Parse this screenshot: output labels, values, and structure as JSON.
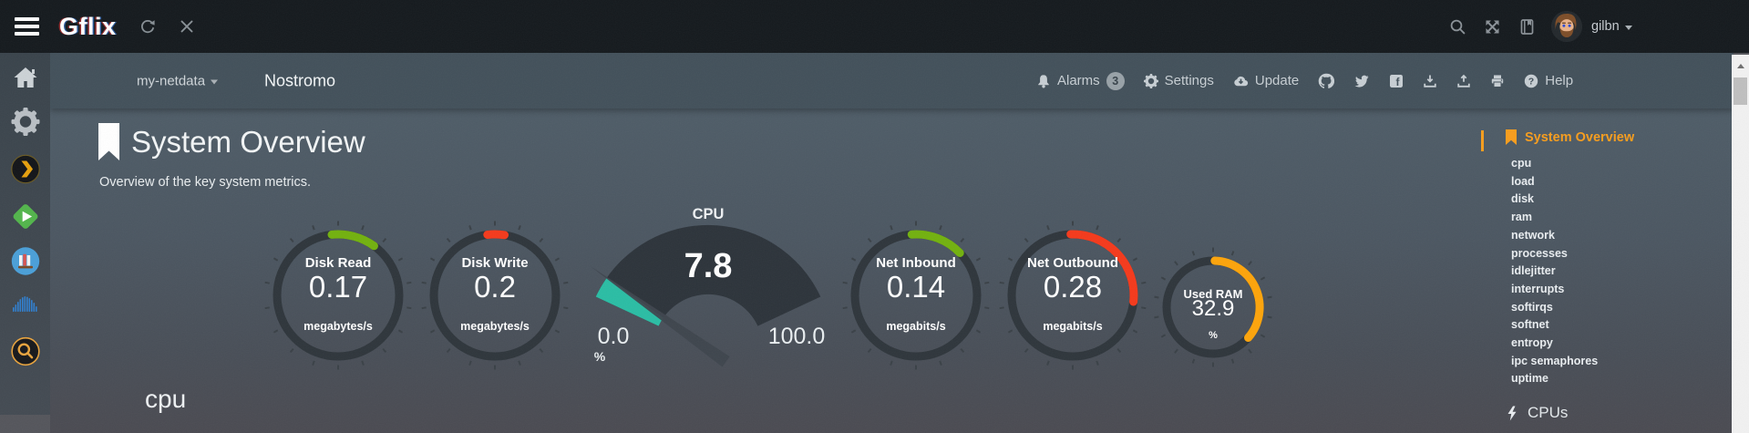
{
  "topbar": {
    "logo": "Gflix",
    "username": "gilbn"
  },
  "navbar": {
    "server": "my-netdata",
    "host": "Nostromo",
    "alarms_label": "Alarms",
    "alarms_count": "3",
    "settings_label": "Settings",
    "update_label": "Update",
    "help_label": "Help"
  },
  "page": {
    "title": "System Overview",
    "subtitle": "Overview of the key system metrics.",
    "section_heading": "cpu"
  },
  "gauges": [
    {
      "id": "disk-read",
      "label": "Disk Read",
      "value": "0.17",
      "unit": "megabytes/s",
      "color": "#72b10e",
      "arc_start": -6,
      "arc_end": 36
    },
    {
      "id": "disk-write",
      "label": "Disk Write",
      "value": "0.2",
      "unit": "megabytes/s",
      "color": "#f4391b",
      "arc_start": -7,
      "arc_end": 9
    },
    {
      "id": "net-inbound",
      "label": "Net Inbound",
      "value": "0.14",
      "unit": "megabits/s",
      "color": "#72b10e",
      "arc_start": -4,
      "arc_end": 46
    },
    {
      "id": "net-outbound",
      "label": "Net Outbound",
      "value": "0.28",
      "unit": "megabits/s",
      "color": "#f4391b",
      "arc_start": -2,
      "arc_end": 96
    },
    {
      "id": "used-ram",
      "label": "Used RAM",
      "value": "32.9",
      "unit": "%",
      "color": "#fda40a",
      "arc_start": 2,
      "arc_end": 131
    }
  ],
  "cpu_gauge": {
    "label": "CPU",
    "value": "7.8",
    "min": "0.0",
    "max": "100.0",
    "unit": "%",
    "fill": "#2abda4"
  },
  "menu": {
    "heading": "System Overview",
    "items": [
      "cpu",
      "load",
      "disk",
      "ram",
      "network",
      "processes",
      "idlejitter",
      "interrupts",
      "softirqs",
      "softnet",
      "entropy",
      "ipc semaphores",
      "uptime"
    ],
    "subsection": "CPUs"
  },
  "colors": {
    "accent_orange": "#f89d1c",
    "gauge_green": "#72b10e",
    "gauge_red": "#f4391b",
    "gauge_teal": "#2abda4",
    "gauge_orange": "#fda40a"
  },
  "sidebar_icons": [
    "home",
    "settings",
    "plex",
    "emby",
    "library",
    "soundwave",
    "search"
  ]
}
